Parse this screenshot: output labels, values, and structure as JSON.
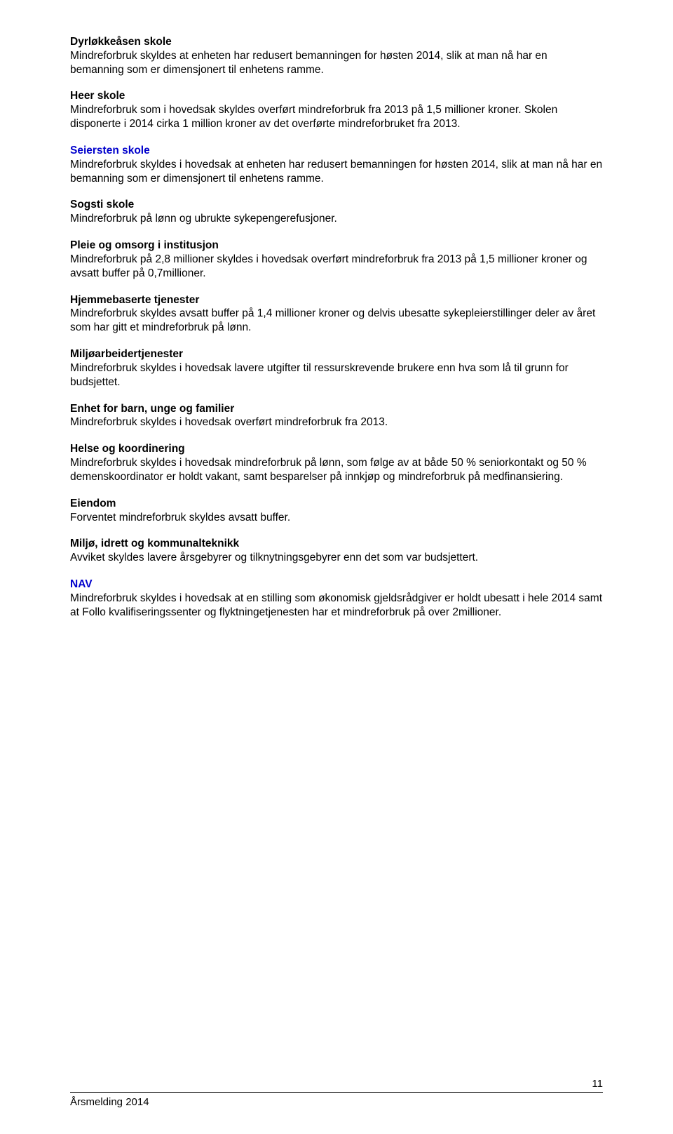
{
  "sections": [
    {
      "heading": "Dyrløkkeåsen skole",
      "heading_color": "black",
      "body": "Mindreforbruk skyldes at enheten har redusert bemanningen for høsten 2014, slik at man nå har en bemanning som er dimensjonert til enhetens ramme."
    },
    {
      "heading": "Heer skole",
      "heading_color": "black",
      "body": "Mindreforbruk som i hovedsak skyldes overført mindreforbruk fra 2013 på 1,5 millioner kroner. Skolen disponerte i 2014 cirka 1 million kroner av det overførte mindreforbruket fra 2013."
    },
    {
      "heading": "Seiersten skole",
      "heading_color": "blue",
      "body": "Mindreforbruk skyldes i hovedsak at enheten har redusert bemanningen for høsten 2014, slik at man nå har en bemanning som er dimensjonert til enhetens ramme."
    },
    {
      "heading": "Sogsti skole",
      "heading_color": "black",
      "body": "Mindreforbruk på lønn og ubrukte sykepengerefusjoner."
    },
    {
      "heading": "Pleie og omsorg i institusjon",
      "heading_color": "black",
      "body": "Mindreforbruk på 2,8 millioner skyldes i hovedsak overført mindreforbruk fra 2013 på 1,5 millioner kroner og avsatt buffer på 0,7millioner."
    },
    {
      "heading": "Hjemmebaserte tjenester",
      "heading_color": "black",
      "body": "Mindreforbruk skyldes avsatt buffer på 1,4 millioner kroner og delvis ubesatte sykepleierstillinger deler av året som har gitt et mindreforbruk på lønn."
    },
    {
      "heading": "Miljøarbeidertjenester",
      "heading_color": "black",
      "body": "Mindreforbruk skyldes i hovedsak lavere utgifter til ressurskrevende brukere enn hva som lå til grunn for budsjettet."
    },
    {
      "heading": "Enhet for barn, unge og familier",
      "heading_color": "black",
      "body": "Mindreforbruk skyldes i hovedsak overført mindreforbruk fra 2013."
    },
    {
      "heading": "Helse og koordinering",
      "heading_color": "black",
      "body": "Mindreforbruk skyldes i hovedsak mindreforbruk på lønn, som følge av at både 50 % seniorkontakt og 50 % demenskoordinator er holdt vakant, samt besparelser på innkjøp og mindreforbruk på medfinansiering."
    },
    {
      "heading": "Eiendom",
      "heading_color": "black",
      "body": "Forventet mindreforbruk skyldes avsatt buffer."
    },
    {
      "heading": "Miljø, idrett og kommunalteknikk",
      "heading_color": "black",
      "body": "Avviket skyldes lavere årsgebyrer og tilknytningsgebyrer enn det som var budsjettert."
    },
    {
      "heading": "NAV",
      "heading_color": "blue",
      "body": "Mindreforbruk skyldes i hovedsak at en stilling som økonomisk gjeldsrådgiver er holdt ubesatt i hele 2014 samt at Follo kvalifiseringssenter og flyktningetjenesten har et mindreforbruk på over 2millioner."
    }
  ],
  "footer_label": "Årsmelding 2014",
  "page_number": "11",
  "colors": {
    "text": "#000000",
    "blue_heading": "#0000cc",
    "background": "#ffffff"
  }
}
